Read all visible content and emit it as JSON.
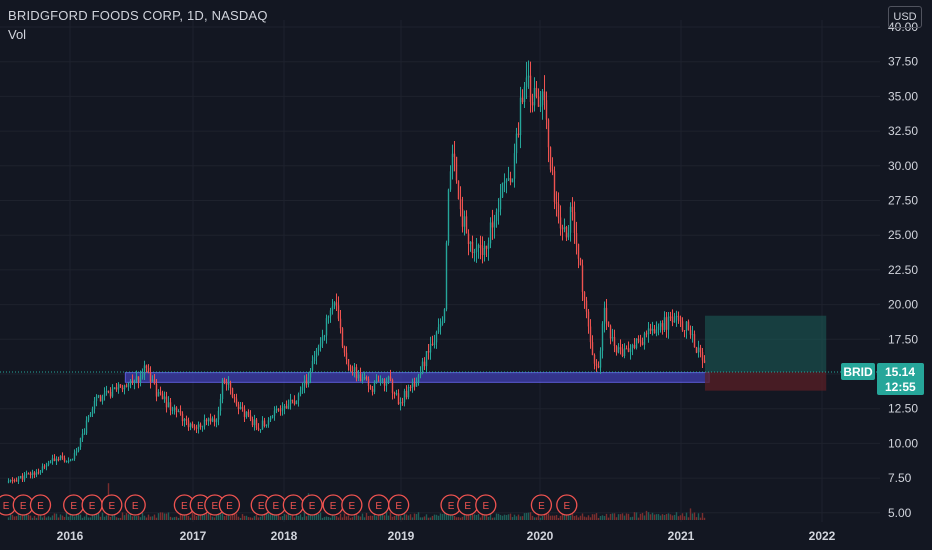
{
  "header": {
    "title": "BRIDGFORD FOODS CORP, 1D, NASDAQ",
    "volume_label": "Vol",
    "currency_button": "USD"
  },
  "price_tag": {
    "symbol": "BRID",
    "price": "15.14",
    "countdown": "12:55"
  },
  "colors": {
    "background": "#131722",
    "up": "#26a69a",
    "down": "#ef5350",
    "support_zone": "#3f3fb0",
    "target_zone": "#1b5e5a",
    "stop_zone": "#5a1f25",
    "grid": "#1e222d"
  },
  "chart_data": {
    "type": "candlestick",
    "title": "BRIDGFORD FOODS CORP, 1D, NASDAQ",
    "y_axis": {
      "ticks": [
        "5.00",
        "7.50",
        "10.00",
        "12.50",
        "15.00",
        "17.50",
        "20.00",
        "22.50",
        "25.00",
        "27.50",
        "30.00",
        "32.50",
        "35.00",
        "37.50",
        "40.00"
      ],
      "range": [
        4.5,
        40.5
      ]
    },
    "x_axis": {
      "ticks": [
        "2016",
        "2017",
        "2018",
        "2019",
        "2020",
        "2021",
        "2022"
      ]
    },
    "price_path": [
      [
        2015.5,
        7.2
      ],
      [
        2015.75,
        8.0
      ],
      [
        2015.9,
        9.0
      ],
      [
        2016.0,
        8.6
      ],
      [
        2016.1,
        10.5
      ],
      [
        2016.2,
        13.2
      ],
      [
        2016.35,
        13.8
      ],
      [
        2016.5,
        14.2
      ],
      [
        2016.62,
        15.4
      ],
      [
        2016.72,
        13.4
      ],
      [
        2016.85,
        12.4
      ],
      [
        2017.0,
        11.2
      ],
      [
        2017.2,
        11.8
      ],
      [
        2017.25,
        14.8
      ],
      [
        2017.4,
        12.2
      ],
      [
        2017.55,
        11.2
      ],
      [
        2017.7,
        12.6
      ],
      [
        2017.85,
        13.0
      ],
      [
        2017.95,
        15.0
      ],
      [
        2018.1,
        19.0
      ],
      [
        2018.15,
        20.5
      ],
      [
        2018.22,
        17.0
      ],
      [
        2018.3,
        15.2
      ],
      [
        2018.45,
        14.0
      ],
      [
        2018.6,
        14.5
      ],
      [
        2018.68,
        13.0
      ],
      [
        2018.8,
        14.2
      ],
      [
        2018.9,
        16.2
      ],
      [
        2019.0,
        18.0
      ],
      [
        2019.05,
        20.0
      ],
      [
        2019.08,
        28.0
      ],
      [
        2019.12,
        31.0
      ],
      [
        2019.2,
        26.0
      ],
      [
        2019.3,
        23.5
      ],
      [
        2019.4,
        24.8
      ],
      [
        2019.5,
        28.0
      ],
      [
        2019.6,
        29.5
      ],
      [
        2019.65,
        33.0
      ],
      [
        2019.7,
        36.0
      ],
      [
        2019.78,
        34.8
      ],
      [
        2019.85,
        35.2
      ],
      [
        2019.92,
        29.5
      ],
      [
        2020.0,
        25.0
      ],
      [
        2020.05,
        25.5
      ],
      [
        2020.08,
        27.0
      ],
      [
        2020.12,
        24.5
      ],
      [
        2020.2,
        19.5
      ],
      [
        2020.25,
        16.0
      ],
      [
        2020.3,
        15.2
      ],
      [
        2020.35,
        19.5
      ],
      [
        2020.4,
        17.5
      ],
      [
        2020.5,
        16.5
      ],
      [
        2020.6,
        17.0
      ],
      [
        2020.7,
        17.8
      ],
      [
        2020.8,
        18.5
      ],
      [
        2020.9,
        18.8
      ],
      [
        2021.0,
        18.5
      ],
      [
        2021.05,
        18.2
      ],
      [
        2021.12,
        16.5
      ],
      [
        2021.18,
        15.14
      ]
    ],
    "annotations": {
      "support_zone": [
        14.4,
        15.1
      ],
      "last_price": 15.14,
      "target_zone": [
        15.14,
        19.2
      ],
      "stop_zone": [
        13.8,
        15.14
      ],
      "earnings_markers": [
        "E",
        "E",
        "E",
        "E",
        "E",
        "E",
        "E",
        "E",
        "E",
        "E",
        "E",
        "E",
        "E",
        "E",
        "E",
        "E",
        "E",
        "E",
        "E",
        "E",
        "E",
        "E",
        "E",
        "E"
      ]
    }
  }
}
